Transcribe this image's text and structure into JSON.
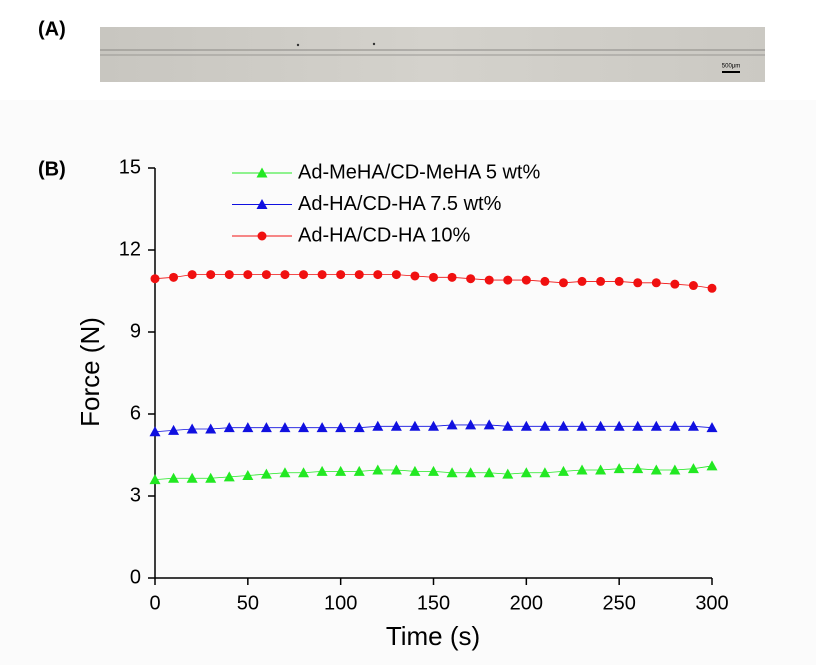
{
  "panel_a": {
    "label": "(A)",
    "scale_bar": "500μm"
  },
  "chart_data": {
    "type": "scatter",
    "panel_label": "(B)",
    "x_label": "Time (s)",
    "y_label": "Force (N)",
    "x": [
      0,
      10,
      20,
      30,
      40,
      50,
      60,
      70,
      80,
      90,
      100,
      110,
      120,
      130,
      140,
      150,
      160,
      170,
      180,
      190,
      200,
      210,
      220,
      230,
      240,
      250,
      260,
      270,
      280,
      290,
      300
    ],
    "series": [
      {
        "name": "Ad-MeHA/CD-MeHA 5 wt%",
        "color": "#22e822",
        "marker": "triangle",
        "values": [
          3.6,
          3.65,
          3.65,
          3.65,
          3.7,
          3.75,
          3.8,
          3.85,
          3.85,
          3.9,
          3.9,
          3.9,
          3.95,
          3.95,
          3.9,
          3.9,
          3.85,
          3.85,
          3.85,
          3.8,
          3.85,
          3.85,
          3.9,
          3.95,
          3.95,
          4.0,
          4.0,
          3.95,
          3.95,
          4.0,
          4.1
        ]
      },
      {
        "name": "Ad-HA/CD-HA 7.5 wt%",
        "color": "#1010e0",
        "marker": "triangle",
        "values": [
          5.35,
          5.4,
          5.45,
          5.45,
          5.5,
          5.5,
          5.5,
          5.5,
          5.5,
          5.5,
          5.5,
          5.5,
          5.55,
          5.55,
          5.55,
          5.55,
          5.6,
          5.6,
          5.6,
          5.55,
          5.55,
          5.55,
          5.55,
          5.55,
          5.55,
          5.55,
          5.55,
          5.55,
          5.55,
          5.55,
          5.5
        ]
      },
      {
        "name": "Ad-HA/CD-HA 10%",
        "color": "#f01010",
        "marker": "circle",
        "values": [
          10.95,
          11.0,
          11.1,
          11.1,
          11.1,
          11.1,
          11.1,
          11.1,
          11.1,
          11.1,
          11.1,
          11.1,
          11.1,
          11.1,
          11.05,
          11.0,
          11.0,
          10.95,
          10.9,
          10.9,
          10.9,
          10.85,
          10.8,
          10.85,
          10.85,
          10.85,
          10.8,
          10.8,
          10.75,
          10.7,
          10.6
        ]
      }
    ],
    "xlim": [
      0,
      300
    ],
    "xticks": [
      0,
      50,
      100,
      150,
      200,
      250,
      300
    ],
    "ylim": [
      0,
      15
    ],
    "yticks": [
      0,
      3,
      6,
      9,
      12,
      15
    ]
  }
}
